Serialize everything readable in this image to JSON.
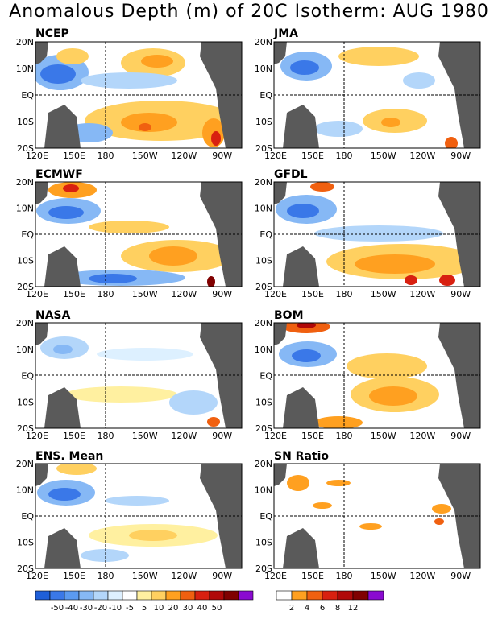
{
  "title": "Anomalous Depth (m) of 20C Isotherm: AUG 1980",
  "lat_labels": [
    "20N",
    "10N",
    "EQ",
    "10S",
    "20S"
  ],
  "lon_labels": [
    "120E",
    "150E",
    "180",
    "150W",
    "120W",
    "90W"
  ],
  "panels": [
    {
      "name": "NCEP"
    },
    {
      "name": "JMA"
    },
    {
      "name": "ECMWF"
    },
    {
      "name": "GFDL"
    },
    {
      "name": "NASA"
    },
    {
      "name": "BOM"
    },
    {
      "name": "ENS. Mean"
    },
    {
      "name": "SN Ratio"
    }
  ],
  "colorbar_anomaly": {
    "colors": [
      "#1f5fd8",
      "#3a78e8",
      "#5b9af0",
      "#86b8f5",
      "#b3d6fa",
      "#ddf0ff",
      "#ffffff",
      "#fff0a0",
      "#ffd060",
      "#ffa020",
      "#f06010",
      "#d82010",
      "#b00808",
      "#800000",
      "#8a0ad0"
    ],
    "labels": [
      "-50",
      "-40",
      "-30",
      "-20",
      "-10",
      "-5",
      "5",
      "10",
      "20",
      "30",
      "40",
      "50"
    ]
  },
  "colorbar_sn": {
    "colors": [
      "#ffffff",
      "#ffa020",
      "#f06010",
      "#d82010",
      "#b00808",
      "#800000",
      "#8a0ad0"
    ],
    "labels": [
      "2",
      "4",
      "6",
      "8",
      "12"
    ]
  }
}
